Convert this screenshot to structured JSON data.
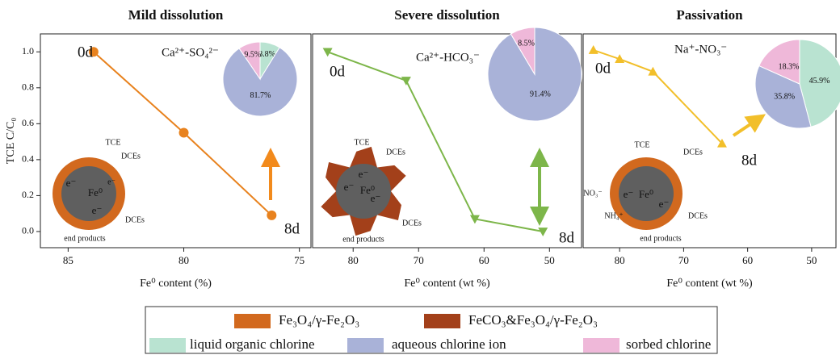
{
  "chart_data": [
    {
      "type": "line",
      "title": "Mild dissolution",
      "xlabel": "Fe⁰ content (%)",
      "ylabel": "TCE C/C₀",
      "xlim": [
        86.2,
        74.5
      ],
      "xticks": [
        85,
        80,
        75
      ],
      "ylim": [
        -0.09,
        1.1
      ],
      "yticks": [
        {
          "value": 0,
          "label": "0.0"
        },
        0.2,
        0.4,
        0.6,
        0.8,
        {
          "value": 1,
          "label": "1.0"
        }
      ],
      "series": [
        {
          "color": "#e8821e",
          "marker": "circle",
          "x": [
            83.9,
            80.0,
            76.2
          ],
          "values": [
            1.0,
            0.55,
            0.09
          ]
        }
      ],
      "annotations": [
        "0d",
        "8d",
        "Ca²⁺-SO₄²⁻"
      ],
      "pie": {
        "values": [
          8.8,
          81.7,
          9.5
        ],
        "value_labels": [
          "8.8%",
          "81.7%",
          "9.5%"
        ],
        "colors": [
          "#b9e3d1",
          "#a9b2d8",
          "#efb8d9"
        ]
      },
      "diagram_labels": [
        "TCE",
        "DCEs",
        "Fe⁰",
        "e⁻",
        "e⁻",
        "e⁻",
        "DCEs",
        "end products"
      ]
    },
    {
      "type": "line",
      "title": "Severe dissolution",
      "xlabel": "Fe⁰ content (wt %)",
      "xlim": [
        86.2,
        45.1
      ],
      "xticks": [
        80,
        70,
        60,
        50
      ],
      "ylim": [
        -0.09,
        1.1
      ],
      "series": [
        {
          "color": "#7db64a",
          "marker": "triangle-down",
          "x": [
            83.9,
            71.9,
            61.4,
            51.0
          ],
          "values": [
            1.0,
            0.84,
            0.07,
            0.0
          ]
        }
      ],
      "annotations": [
        "0d",
        "8d",
        "Ca²⁺-HCO₃⁻"
      ],
      "pie": {
        "values": [
          91.4,
          8.5
        ],
        "value_labels": [
          "91.4%",
          "8.5%"
        ],
        "colors": [
          "#a9b2d8",
          "#efb8d9"
        ]
      },
      "diagram_labels": [
        "TCE",
        "DCEs",
        "Fe⁰",
        "e⁻",
        "e⁻",
        "e⁻",
        "DCEs",
        "end products"
      ]
    },
    {
      "type": "line",
      "title": "Passivation",
      "xlabel": "Fe⁰ content (wt %)",
      "xlim": [
        85.7,
        46.2
      ],
      "xticks": [
        80,
        70,
        60,
        50
      ],
      "ylim": [
        -0.09,
        1.1
      ],
      "series": [
        {
          "color": "#f2bf2a",
          "marker": "triangle-up",
          "x": [
            84.1,
            80.0,
            74.8,
            64.0
          ],
          "values": [
            1.01,
            0.96,
            0.89,
            0.49
          ]
        }
      ],
      "annotations": [
        "0d",
        "8d",
        "Na⁺-NO₃⁻"
      ],
      "pie": {
        "values": [
          45.9,
          35.8,
          18.3
        ],
        "value_labels": [
          "45.9%",
          "35.8%",
          "18.3%"
        ],
        "colors": [
          "#b9e3d1",
          "#a9b2d8",
          "#efb8d9"
        ]
      },
      "diagram_labels": [
        "TCE",
        "DCEs",
        "NO₃⁻",
        "Fe⁰",
        "e⁻",
        "e⁻",
        "NH₄⁺",
        "DCEs",
        "end products"
      ]
    }
  ],
  "legend": {
    "items": [
      {
        "label": "Fe₃O₄/γ-Fe₂O₃",
        "color": "#d2691e"
      },
      {
        "label": "FeCO₃&Fe₃O₄/γ-Fe₂O₃",
        "color": "#a3401a"
      },
      {
        "label": "liquid organic chlorine",
        "color": "#b9e3d1"
      },
      {
        "label": "aqueous chlorine ion",
        "color": "#a9b2d8"
      },
      {
        "label": "sorbed chlorine",
        "color": "#efb8d9"
      }
    ]
  }
}
